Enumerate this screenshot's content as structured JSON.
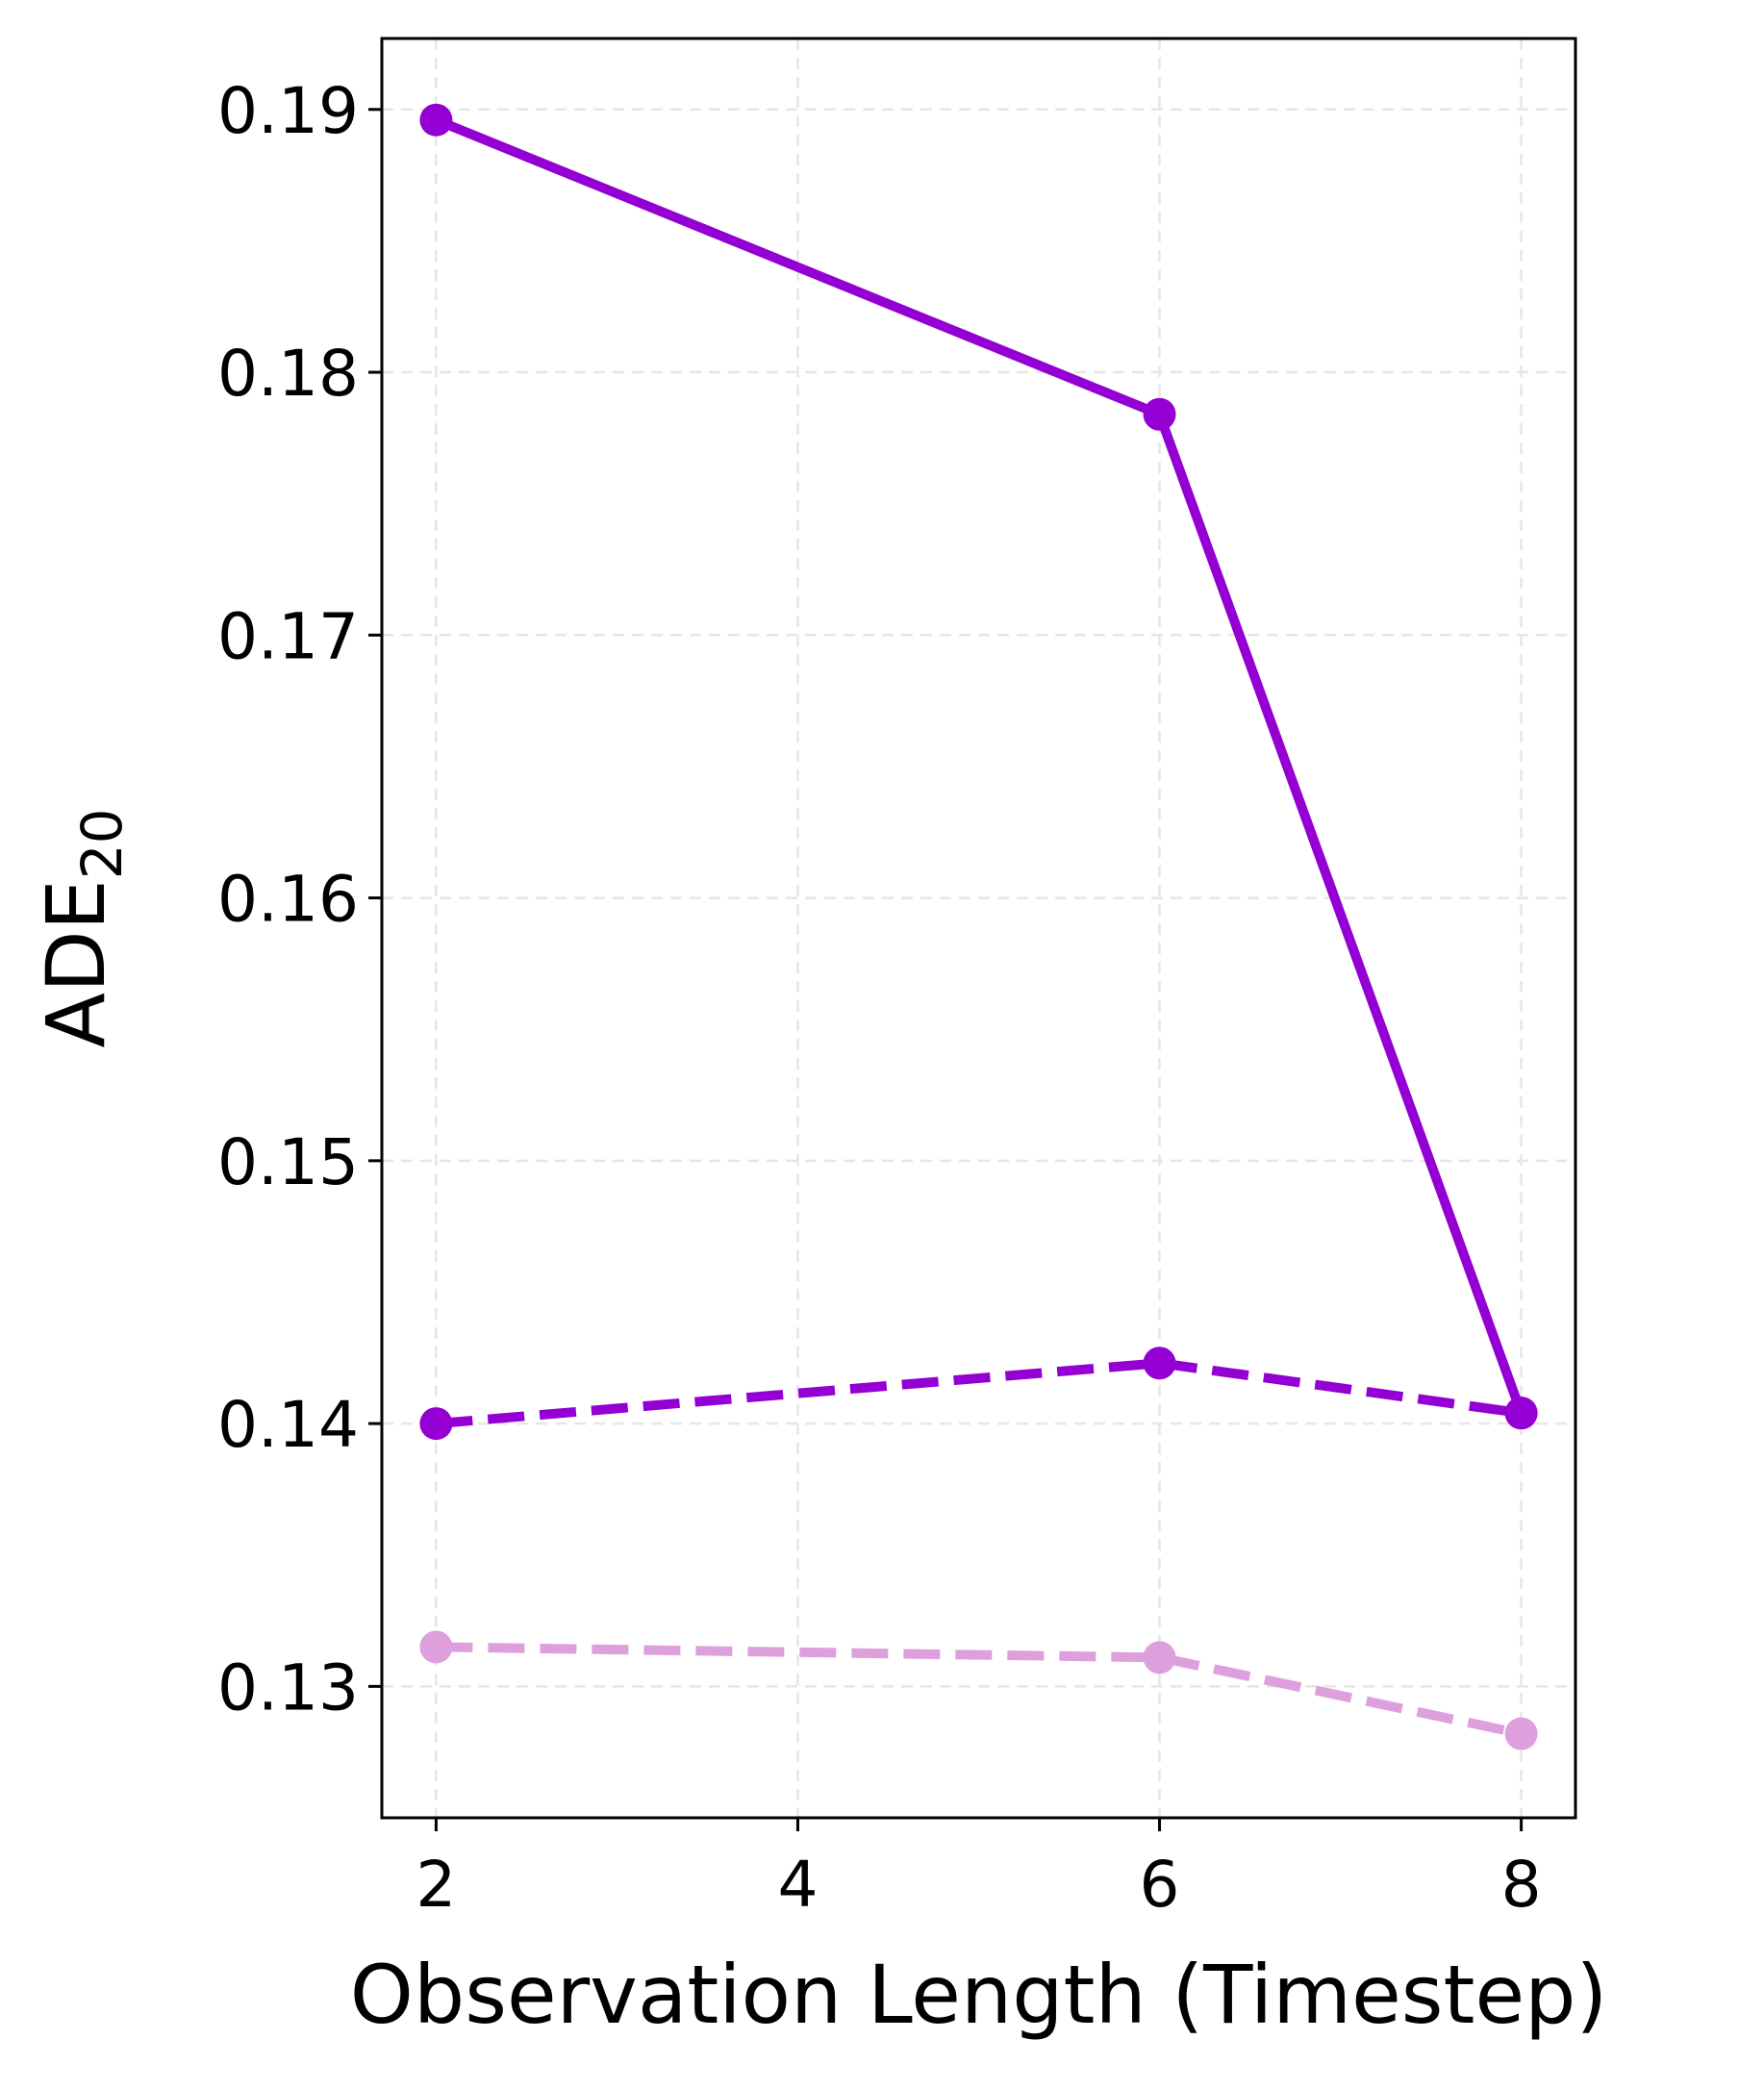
{
  "chart_data": {
    "type": "line",
    "xlabel": "Observation Length (Timestep)",
    "ylabel": "ADE",
    "ylabel_subscript": "20",
    "xlim": [
      1.7,
      8.3
    ],
    "ylim": [
      0.125,
      0.1927
    ],
    "xticks": [
      2,
      4,
      6,
      8
    ],
    "xtick_labels": [
      "2",
      "4",
      "6",
      "8"
    ],
    "yticks": [
      0.13,
      0.14,
      0.15,
      0.16,
      0.17,
      0.18,
      0.19
    ],
    "ytick_labels": [
      "0.13",
      "0.14",
      "0.15",
      "0.16",
      "0.17",
      "0.18",
      "0.19"
    ],
    "grid": true,
    "legend": "none",
    "x": [
      2,
      6,
      8
    ],
    "series": [
      {
        "values": [
          0.1896,
          0.1784,
          0.1404
        ],
        "color": "#9400D3",
        "linestyle": "solid"
      },
      {
        "values": [
          0.14,
          0.1423,
          0.1404
        ],
        "color": "#9400D3",
        "linestyle": "dashed"
      },
      {
        "values": [
          0.1315,
          0.1311,
          0.1282
        ],
        "color": "#DDA0DD",
        "linestyle": "dashed"
      }
    ]
  }
}
